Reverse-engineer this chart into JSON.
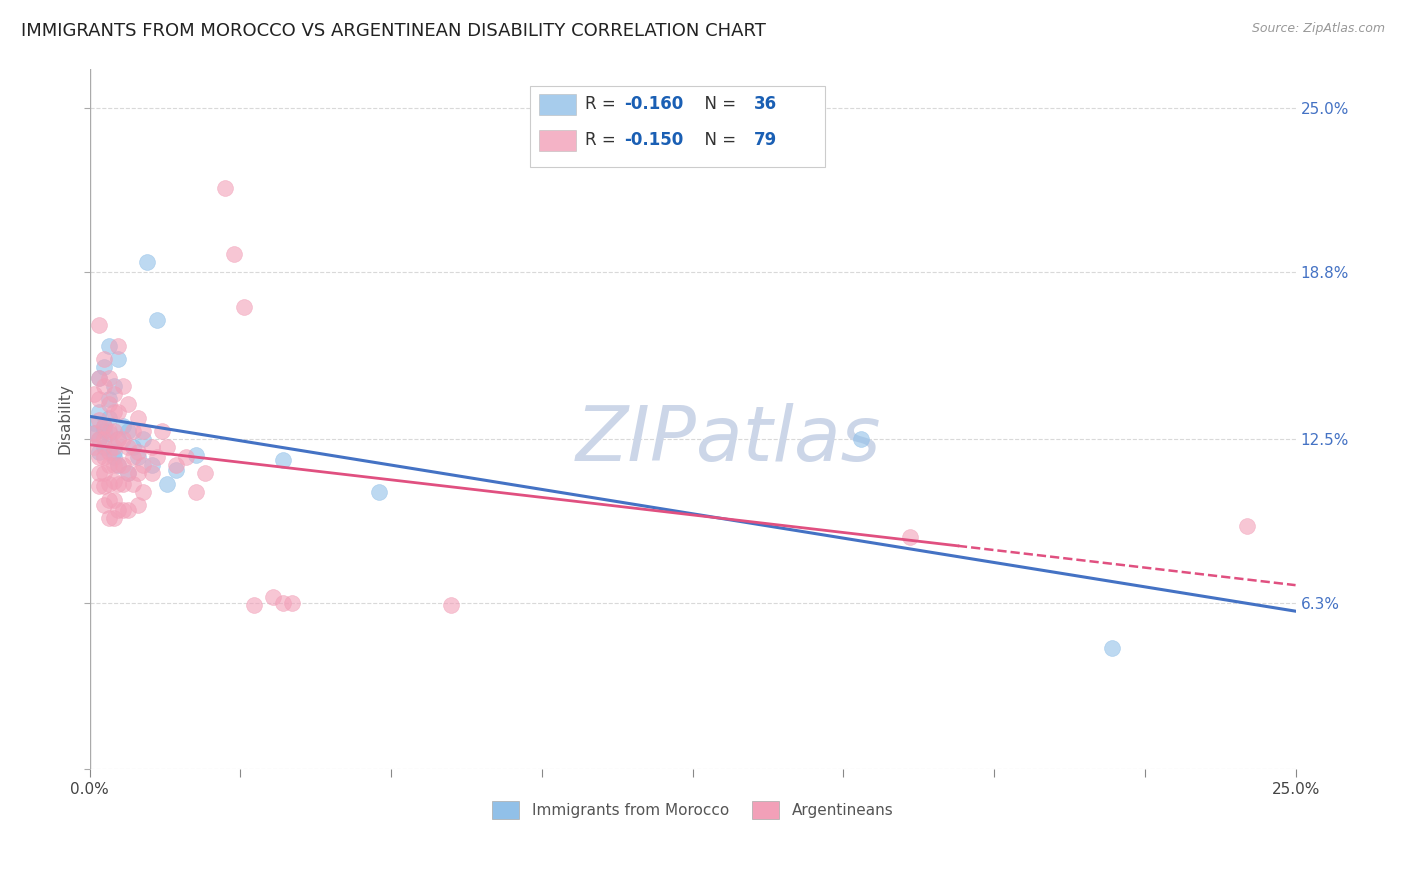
{
  "title": "IMMIGRANTS FROM MOROCCO VS ARGENTINEAN DISABILITY CORRELATION CHART",
  "source": "Source: ZipAtlas.com",
  "ylabel": "Disability",
  "xlim": [
    0.0,
    0.25
  ],
  "ylim": [
    0.0,
    0.265
  ],
  "ytick_values": [
    0.0,
    0.063,
    0.125,
    0.188,
    0.25
  ],
  "ytick_labels": [
    "",
    "6.3%",
    "12.5%",
    "18.8%",
    "25.0%"
  ],
  "legend_label_1": "Immigrants from Morocco",
  "legend_label_2": "Argentineans",
  "blue_scatter_color": "#91c0e8",
  "pink_scatter_color": "#f2a0b8",
  "blue_line_color": "#4472c4",
  "pink_line_color": "#e05080",
  "watermark": "ZIPatlas",
  "watermark_color": "#ccd6e8",
  "background_color": "#ffffff",
  "grid_color": "#d0d0d0",
  "title_fontsize": 13,
  "source_fontsize": 9,
  "watermark_fontsize": 55,
  "morocco_points": [
    [
      0.001,
      0.127
    ],
    [
      0.001,
      0.131
    ],
    [
      0.002,
      0.148
    ],
    [
      0.002,
      0.135
    ],
    [
      0.002,
      0.125
    ],
    [
      0.002,
      0.12
    ],
    [
      0.003,
      0.152
    ],
    [
      0.003,
      0.13
    ],
    [
      0.003,
      0.128
    ],
    [
      0.003,
      0.122
    ],
    [
      0.004,
      0.16
    ],
    [
      0.004,
      0.14
    ],
    [
      0.004,
      0.133
    ],
    [
      0.004,
      0.127
    ],
    [
      0.005,
      0.145
    ],
    [
      0.005,
      0.12
    ],
    [
      0.005,
      0.118
    ],
    [
      0.006,
      0.155
    ],
    [
      0.006,
      0.115
    ],
    [
      0.006,
      0.125
    ],
    [
      0.007,
      0.13
    ],
    [
      0.008,
      0.128
    ],
    [
      0.008,
      0.112
    ],
    [
      0.009,
      0.122
    ],
    [
      0.01,
      0.118
    ],
    [
      0.011,
      0.125
    ],
    [
      0.012,
      0.192
    ],
    [
      0.013,
      0.115
    ],
    [
      0.014,
      0.17
    ],
    [
      0.016,
      0.108
    ],
    [
      0.018,
      0.113
    ],
    [
      0.022,
      0.119
    ],
    [
      0.04,
      0.117
    ],
    [
      0.06,
      0.105
    ],
    [
      0.16,
      0.125
    ],
    [
      0.212,
      0.046
    ]
  ],
  "argentina_points": [
    [
      0.001,
      0.142
    ],
    [
      0.001,
      0.127
    ],
    [
      0.001,
      0.122
    ],
    [
      0.002,
      0.168
    ],
    [
      0.002,
      0.148
    ],
    [
      0.002,
      0.14
    ],
    [
      0.002,
      0.132
    ],
    [
      0.002,
      0.125
    ],
    [
      0.002,
      0.118
    ],
    [
      0.002,
      0.112
    ],
    [
      0.002,
      0.107
    ],
    [
      0.003,
      0.155
    ],
    [
      0.003,
      0.145
    ],
    [
      0.003,
      0.13
    ],
    [
      0.003,
      0.125
    ],
    [
      0.003,
      0.118
    ],
    [
      0.003,
      0.112
    ],
    [
      0.003,
      0.107
    ],
    [
      0.003,
      0.1
    ],
    [
      0.004,
      0.148
    ],
    [
      0.004,
      0.138
    ],
    [
      0.004,
      0.128
    ],
    [
      0.004,
      0.12
    ],
    [
      0.004,
      0.115
    ],
    [
      0.004,
      0.108
    ],
    [
      0.004,
      0.102
    ],
    [
      0.004,
      0.095
    ],
    [
      0.005,
      0.142
    ],
    [
      0.005,
      0.135
    ],
    [
      0.005,
      0.128
    ],
    [
      0.005,
      0.122
    ],
    [
      0.005,
      0.115
    ],
    [
      0.005,
      0.109
    ],
    [
      0.005,
      0.102
    ],
    [
      0.005,
      0.095
    ],
    [
      0.006,
      0.16
    ],
    [
      0.006,
      0.135
    ],
    [
      0.006,
      0.125
    ],
    [
      0.006,
      0.115
    ],
    [
      0.006,
      0.108
    ],
    [
      0.006,
      0.098
    ],
    [
      0.007,
      0.145
    ],
    [
      0.007,
      0.125
    ],
    [
      0.007,
      0.115
    ],
    [
      0.007,
      0.108
    ],
    [
      0.007,
      0.098
    ],
    [
      0.008,
      0.138
    ],
    [
      0.008,
      0.122
    ],
    [
      0.008,
      0.112
    ],
    [
      0.008,
      0.098
    ],
    [
      0.009,
      0.128
    ],
    [
      0.009,
      0.118
    ],
    [
      0.009,
      0.108
    ],
    [
      0.01,
      0.133
    ],
    [
      0.01,
      0.12
    ],
    [
      0.01,
      0.112
    ],
    [
      0.01,
      0.1
    ],
    [
      0.011,
      0.128
    ],
    [
      0.011,
      0.115
    ],
    [
      0.011,
      0.105
    ],
    [
      0.013,
      0.122
    ],
    [
      0.013,
      0.112
    ],
    [
      0.014,
      0.118
    ],
    [
      0.015,
      0.128
    ],
    [
      0.016,
      0.122
    ],
    [
      0.018,
      0.115
    ],
    [
      0.02,
      0.118
    ],
    [
      0.022,
      0.105
    ],
    [
      0.024,
      0.112
    ],
    [
      0.028,
      0.22
    ],
    [
      0.03,
      0.195
    ],
    [
      0.032,
      0.175
    ],
    [
      0.034,
      0.062
    ],
    [
      0.038,
      0.065
    ],
    [
      0.04,
      0.063
    ],
    [
      0.042,
      0.063
    ],
    [
      0.075,
      0.062
    ],
    [
      0.17,
      0.088
    ],
    [
      0.24,
      0.092
    ]
  ],
  "legend_r1": "R = -0.160",
  "legend_n1": "N = 36",
  "legend_r2": "R = -0.150",
  "legend_n2": "N = 79"
}
